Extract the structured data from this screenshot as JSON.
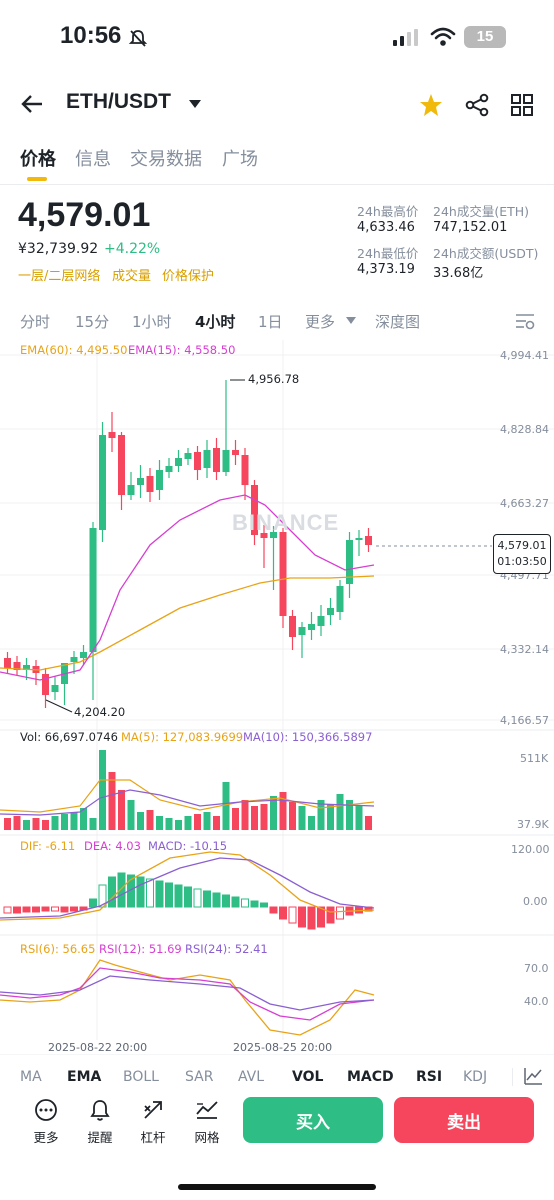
{
  "status_bar": {
    "time": "10:56",
    "battery": "15"
  },
  "header": {
    "pair": "ETH/USDT"
  },
  "tabs": [
    "价格",
    "信息",
    "交易数据",
    "广场"
  ],
  "ticker": {
    "last_price": "4,579.01",
    "fiat_price": "¥32,739.92",
    "change": "+4.22%",
    "pills": [
      "一层/二层网络",
      "成交量",
      "价格保护"
    ],
    "high_label": "24h最高价",
    "high_value": "4,633.46",
    "vol_eth_label": "24h成交量(ETH)",
    "vol_eth_value": "747,152.01",
    "low_label": "24h最低价",
    "low_value": "4,373.19",
    "vol_usdt_label": "24h成交额(USDT)",
    "vol_usdt_value": "33.68亿"
  },
  "intervals": [
    "分时",
    "15分",
    "1小时",
    "4小时",
    "1日",
    "更多",
    "深度图"
  ],
  "chart": {
    "ema60_label": "EMA(60): 4,495.50",
    "ema15_label": "EMA(15): 4,558.50",
    "price_axis": [
      "4,994.41",
      "4,828.84",
      "4,663.27",
      "4,497.71",
      "4,332.14",
      "4,166.57"
    ],
    "max_marker": "4,956.78",
    "min_marker": "4,204.20",
    "current_price": "4,579.01",
    "countdown": "01:03:50",
    "watermark": "BINANCE",
    "vol_label": "Vol: 66,697.0746",
    "ma5_label": "MA(5): 127,083.9699",
    "ma10_label": "MA(10): 150,366.5897",
    "vol_axis": [
      "511K",
      "37.9K"
    ],
    "dif_label": "DIF: -6.11",
    "dea_label": "DEA: 4.03",
    "macd_label": "MACD: -10.15",
    "macd_axis": [
      "120.00",
      "0.00"
    ],
    "rsi6_label": "RSI(6): 56.65",
    "rsi12_label": "RSI(12): 51.69",
    "rsi24_label": "RSI(24): 52.41",
    "rsi_axis": [
      "70.0",
      "40.0"
    ],
    "date_labels": [
      "2025-08-22 20:00",
      "2025-08-25 20:00"
    ]
  },
  "indicator_tabs": [
    "MA",
    "EMA",
    "BOLL",
    "SAR",
    "AVL",
    "VOL",
    "MACD",
    "RSI",
    "KDJ"
  ],
  "actions": [
    "更多",
    "提醒",
    "杠杆",
    "网格"
  ],
  "buy_label": "买入",
  "sell_label": "卖出",
  "colors": {
    "up": "#2ebd85",
    "down": "#f6465d",
    "accent": "#f0b90b",
    "ema60": "#e8a317",
    "ema15": "#d63fd1",
    "ma10": "#8a5fd0"
  },
  "icons": [
    "back-arrow-icon",
    "dropdown-caret-icon",
    "star-icon",
    "share-icon",
    "grid-icon",
    "chart-settings-icon",
    "more-icon",
    "bell-icon",
    "leverage-icon",
    "grid-trading-icon",
    "draw-tool-icon"
  ]
}
